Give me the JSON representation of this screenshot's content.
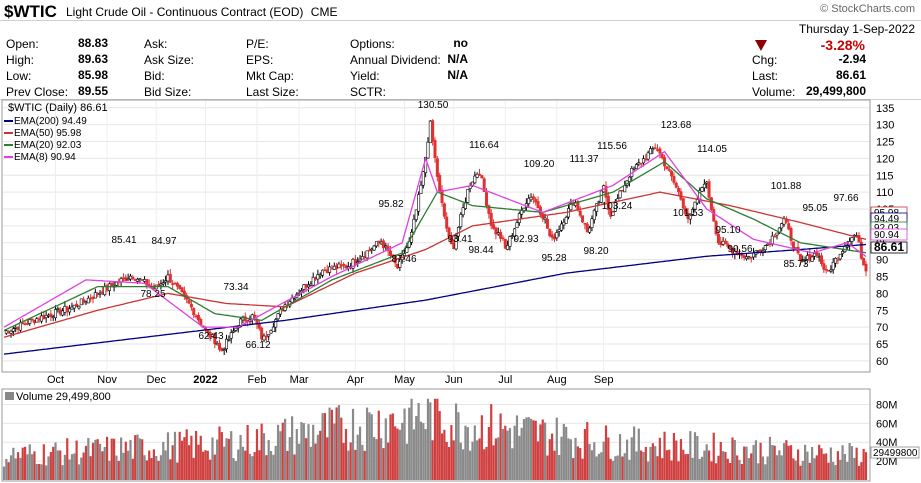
{
  "header": {
    "symbol": "$WTIC",
    "description": "Light Crude Oil - Continuous Contract (EOD)",
    "exchange": "CME",
    "copyright": "© StockCharts.com"
  },
  "quote": {
    "date": "Thursday  1-Sep-2022",
    "open_label": "Open:",
    "open": "88.83",
    "high_label": "High:",
    "high": "89.63",
    "low_label": "Low:",
    "low": "85.98",
    "prev_label": "Prev Close:",
    "prev": "89.55",
    "ask_label": "Ask:",
    "asksize_label": "Ask Size:",
    "bid_label": "Bid:",
    "bidsize_label": "Bid Size:",
    "pe_label": "P/E:",
    "eps_label": "EPS:",
    "mktcap_label": "Mkt Cap:",
    "lastsize_label": "Last Size:",
    "options_label": "Options:",
    "options": "no",
    "div_label": "Annual Dividend:",
    "div": "N/A",
    "yield_label": "Yield:",
    "yield": "N/A",
    "sctr_label": "SCTR:",
    "pct_change": "-3.28%",
    "chg_label": "Chg:",
    "chg": "-2.94",
    "last_label": "Last:",
    "last": "86.61",
    "volume_label": "Volume:",
    "volume": "29,499,800",
    "down_color": "#cc0000"
  },
  "legend": {
    "main": "$WTIC (Daily) 86.61",
    "ema200": "EMA(200) 94.49",
    "ema50": "EMA(50) 95.98",
    "ema20": "EMA(20) 92.03",
    "ema8": "EMA(8) 90.94",
    "volume": "Volume 29,499,800",
    "colors": {
      "ema200": "#000080",
      "ema50": "#cc3333",
      "ema20": "#2e7d32",
      "ema8": "#e040e0"
    }
  },
  "chart_data": [
    {
      "type": "line",
      "title": "$WTIC (Daily) 86.61",
      "x_ticks": [
        "Oct",
        "Nov",
        "Dec",
        "2022",
        "Feb",
        "Mar",
        "Apr",
        "May",
        "Jun",
        "Jul",
        "Aug",
        "Sep"
      ],
      "y_ticks": [
        60,
        65,
        70,
        75,
        80,
        85,
        90,
        95,
        100,
        105,
        110,
        115,
        120,
        125,
        130,
        135
      ],
      "ylim": [
        57,
        137
      ],
      "price_key_points": [
        [
          "Sep 1 2021",
          68.5
        ],
        [
          "Sep 15",
          72.5
        ],
        [
          "Oct 1",
          75.9
        ],
        [
          "Oct 20",
          83.5
        ],
        [
          "Oct 26",
          85.41
        ],
        [
          "Nov 5",
          81.3
        ],
        [
          "Nov 9",
          84.97
        ],
        [
          "Nov 19",
          76.1
        ],
        [
          "Nov 26",
          68.2
        ],
        [
          "Dec 1",
          65.6
        ],
        [
          "Dec 2",
          62.43
        ],
        [
          "Dec 10",
          71.7
        ],
        [
          "Dec 16",
          73.34
        ],
        [
          "Dec 20",
          68.6
        ],
        [
          "Dec 21",
          66.12
        ],
        [
          "Jan 4 2022",
          77.0
        ],
        [
          "Jan 20",
          86.9
        ],
        [
          "Feb 1",
          88.2
        ],
        [
          "Feb 14",
          95.46
        ],
        [
          "Feb 18",
          91.07
        ],
        [
          "Feb 22",
          87.46
        ],
        [
          "Feb 28",
          95.72
        ],
        [
          "Mar 4",
          115.7
        ],
        [
          "Mar 8",
          130.5
        ],
        [
          "Mar 11",
          109.3
        ],
        [
          "Mar 16",
          95.0
        ],
        [
          "Mar 17",
          93.41
        ],
        [
          "Mar 24",
          112.3
        ],
        [
          "Mar 28",
          116.64
        ],
        [
          "Apr 1",
          99.3
        ],
        [
          "Apr 6",
          96.2
        ],
        [
          "Apr 7",
          92.93
        ],
        [
          "Apr 14",
          106.95
        ],
        [
          "Apr 18",
          109.2
        ],
        [
          "Apr 22",
          102.1
        ],
        [
          "Apr 25",
          95.28
        ],
        [
          "May 4",
          107.8
        ],
        [
          "May 10",
          98.2
        ],
        [
          "May 17",
          111.37
        ],
        [
          "May 19",
          103.24
        ],
        [
          "May 27",
          115.56
        ],
        [
          "Jun 8",
          123.68
        ],
        [
          "Jun 17",
          109.56
        ],
        [
          "Jun 22",
          101.53
        ],
        [
          "Jun 29",
          114.05
        ],
        [
          "Jul 6",
          95.1
        ],
        [
          "Jul 14",
          90.56
        ],
        [
          "Jul 22",
          94.7
        ],
        [
          "Jul 29",
          101.88
        ],
        [
          "Aug 5",
          89.0
        ],
        [
          "Aug 12",
          92.1
        ],
        [
          "Aug 16",
          85.73
        ],
        [
          "Aug 24",
          95.05
        ],
        [
          "Aug 29",
          97.66
        ],
        [
          "Aug 31",
          89.55
        ],
        [
          "Sep 1",
          86.61
        ]
      ],
      "annotations": [
        "85.41",
        "84.97",
        "78.25",
        "73.34",
        "62.43",
        "66.12",
        "95.82",
        "87.46",
        "130.50",
        "93.41",
        "116.64",
        "98.44",
        "92.93",
        "109.20",
        "95.28",
        "111.37",
        "98.20",
        "115.56",
        "103.24",
        "123.68",
        "114.05",
        "101.53",
        "95.10",
        "90.56",
        "101.88",
        "85.73",
        "95.05",
        "97.66"
      ],
      "right_labels": [
        "95.98",
        "94.49",
        "92.03",
        "90.94",
        "86.61"
      ],
      "series": [
        {
          "name": "EMA(200) 94.49",
          "values_key_points": [
            [
              0,
              62
            ],
            [
              60,
              67
            ],
            [
              120,
              72
            ],
            [
              180,
              78
            ],
            [
              240,
              86
            ],
            [
              300,
              91
            ],
            [
              340,
              93
            ],
            [
              368,
              94.49
            ]
          ]
        },
        {
          "name": "EMA(50) 95.98",
          "values_key_points": [
            [
              0,
              67
            ],
            [
              40,
              75
            ],
            [
              70,
              80
            ],
            [
              95,
              77
            ],
            [
              120,
              76
            ],
            [
              150,
              86
            ],
            [
              180,
              93
            ],
            [
              200,
              100
            ],
            [
              240,
              104
            ],
            [
              280,
              110
            ],
            [
              310,
              106
            ],
            [
              340,
              101
            ],
            [
              368,
              95.98
            ]
          ]
        },
        {
          "name": "EMA(20) 92.03",
          "values_key_points": [
            [
              0,
              69
            ],
            [
              40,
              82
            ],
            [
              70,
              82
            ],
            [
              90,
              74
            ],
            [
              110,
              72
            ],
            [
              140,
              84
            ],
            [
              170,
              92
            ],
            [
              185,
              110
            ],
            [
              200,
              106
            ],
            [
              230,
              104
            ],
            [
              260,
              110
            ],
            [
              282,
              119
            ],
            [
              300,
              108
            ],
            [
              320,
              102
            ],
            [
              340,
              95
            ],
            [
              368,
              92.03
            ]
          ]
        },
        {
          "name": "EMA(8) 90.94",
          "values_key_points": [
            [
              0,
              70
            ],
            [
              35,
              84
            ],
            [
              60,
              83
            ],
            [
              85,
              70
            ],
            [
              100,
              70
            ],
            [
              140,
              85
            ],
            [
              170,
              95
            ],
            [
              180,
              120
            ],
            [
              185,
              110
            ],
            [
              200,
              112
            ],
            [
              230,
              104
            ],
            [
              260,
              112
            ],
            [
              282,
              122
            ],
            [
              300,
              105
            ],
            [
              320,
              96
            ],
            [
              345,
              92
            ],
            [
              360,
              95
            ],
            [
              368,
              90.94
            ]
          ]
        }
      ]
    },
    {
      "type": "bar",
      "title": "Volume 29,499,800",
      "y_ticks": [
        "80M",
        "60M",
        "40M",
        "20M"
      ],
      "last_value_label": "29499800",
      "ylim": [
        0,
        90
      ],
      "description": "Daily volume in millions; red = down day, gray = up day",
      "values_key_points": [
        [
          0,
          30
        ],
        [
          100,
          45
        ],
        [
          185,
          80
        ],
        [
          190,
          70
        ],
        [
          260,
          45
        ],
        [
          368,
          29.5
        ]
      ]
    }
  ]
}
